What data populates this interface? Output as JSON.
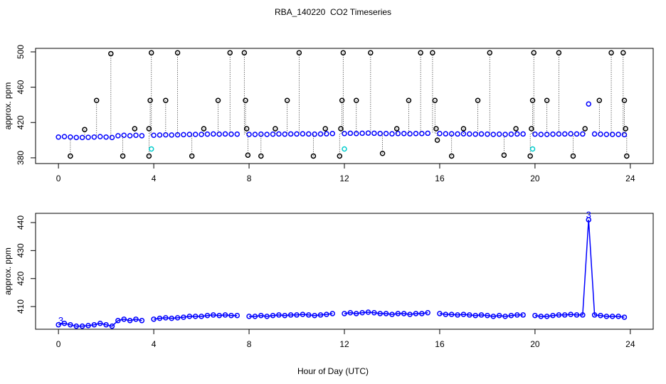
{
  "chart_data": [
    {
      "type": "scatter",
      "title": "RBA_140220  CO2 Timeseries",
      "ylabel": "approx. ppm",
      "xlim": [
        -0.96,
        24.96
      ],
      "xticks": [
        0,
        4,
        8,
        12,
        16,
        20,
        24
      ],
      "ylim": [
        373.5,
        504
      ],
      "yticks": [
        380,
        420,
        460,
        500
      ],
      "series": [
        {
          "color": "#0000ff",
          "x": [
            0,
            0.25,
            0.5,
            0.75,
            1,
            1.25,
            1.5,
            1.75,
            2,
            2.25,
            2.5,
            2.75,
            3,
            3.25,
            3.5,
            3.75,
            4,
            4.25,
            4.5,
            4.75,
            5,
            5.25,
            5.5,
            5.75,
            6,
            6.25,
            6.5,
            6.75,
            7,
            7.25,
            7.5,
            7.75,
            8,
            8.25,
            8.5,
            8.75,
            9,
            9.25,
            9.5,
            9.75,
            10,
            10.25,
            10.5,
            10.75,
            11,
            11.25,
            11.5,
            11.75,
            12,
            12.25,
            12.5,
            12.75,
            13,
            13.25,
            13.5,
            13.75,
            14,
            14.25,
            14.5,
            14.75,
            15,
            15.25,
            15.5,
            15.75,
            16,
            16.25,
            16.5,
            16.75,
            17,
            17.25,
            17.5,
            17.75,
            18,
            18.25,
            18.5,
            18.75,
            19,
            19.25,
            19.5,
            19.75,
            20,
            20.25,
            20.5,
            20.75,
            21,
            21.25,
            21.5,
            21.75,
            22,
            22.25,
            22.5,
            22.75,
            23,
            23.25,
            23.5,
            23.75
          ],
          "values": [
            403.5,
            404,
            403.5,
            403,
            403,
            403.2,
            403.5,
            404,
            403.5,
            403,
            405,
            405.5,
            405,
            405.5,
            405,
            null,
            405.5,
            405.8,
            406,
            405.8,
            406,
            406.2,
            406.5,
            406.5,
            406.5,
            406.8,
            407,
            406.8,
            407,
            406.8,
            406.8,
            null,
            406.5,
            406.5,
            406.8,
            406.5,
            406.8,
            407,
            406.8,
            407,
            407,
            407.2,
            407,
            406.8,
            407,
            407.2,
            407.5,
            null,
            407.5,
            407.8,
            407.5,
            407.8,
            408,
            407.8,
            407.5,
            407.5,
            407.2,
            407.5,
            407.5,
            407.2,
            407.5,
            407.5,
            407.8,
            null,
            407.5,
            407.2,
            407.2,
            407,
            407.2,
            407,
            406.8,
            407,
            406.8,
            406.5,
            406.8,
            406.5,
            406.8,
            407,
            407,
            null,
            406.8,
            406.5,
            406.5,
            406.8,
            407,
            407,
            407.2,
            407,
            407,
            441,
            407,
            406.8,
            406.5,
            406.5,
            406.5,
            406.2
          ]
        },
        {
          "color": "#000000",
          "stem": "dotted",
          "x": [
            0.5,
            1.1,
            1.6,
            2.2,
            2.7,
            3.2,
            3.8,
            3.8,
            3.85,
            3.9,
            4.5,
            5.0,
            5.6,
            6.1,
            6.7,
            7.2,
            7.8,
            7.85,
            7.9,
            7.95,
            8.5,
            9.1,
            9.6,
            10.1,
            10.7,
            11.2,
            11.8,
            11.85,
            11.9,
            11.95,
            12.5,
            13.1,
            13.6,
            14.2,
            14.7,
            15.2,
            15.7,
            15.8,
            15.85,
            15.9,
            16.5,
            17.0,
            17.6,
            18.1,
            18.7,
            19.2,
            19.8,
            19.85,
            19.9,
            19.95,
            20.5,
            21.0,
            21.6,
            22.1,
            22.7,
            23.2,
            23.7,
            23.75,
            23.8,
            23.85
          ],
          "values": [
            382,
            412,
            445,
            498,
            382,
            413,
            382,
            413,
            445,
            499,
            445,
            499,
            382,
            413,
            445,
            499,
            499,
            445,
            413,
            383,
            382,
            413,
            445,
            499,
            382,
            413,
            382,
            413,
            445,
            499,
            445,
            499,
            385,
            413,
            445,
            499,
            499,
            445,
            413,
            400,
            382,
            413,
            445,
            499,
            383,
            413,
            382,
            413,
            445,
            499,
            445,
            499,
            382,
            413,
            445,
            499,
            499,
            445,
            413,
            382
          ]
        },
        {
          "color": "#00cccc",
          "x": [
            3.9,
            12.0,
            19.9
          ],
          "values": [
            390,
            390,
            390
          ]
        }
      ]
    },
    {
      "type": "line",
      "ylabel": "approx. ppm",
      "xlabel": "Hour of Day (UTC)",
      "xlim": [
        -0.96,
        24.96
      ],
      "xticks": [
        0,
        4,
        8,
        12,
        16,
        20,
        24
      ],
      "ylim": [
        401.9,
        443.3
      ],
      "yticks": [
        410,
        420,
        430,
        440
      ],
      "series": [
        {
          "color": "#0000ff",
          "marker": "circle",
          "x": [
            0,
            0.25,
            0.5,
            0.75,
            1,
            1.25,
            1.5,
            1.75,
            2,
            2.25,
            2.5,
            2.75,
            3,
            3.25,
            3.5,
            3.75,
            4,
            4.25,
            4.5,
            4.75,
            5,
            5.25,
            5.5,
            5.75,
            6,
            6.25,
            6.5,
            6.75,
            7,
            7.25,
            7.5,
            7.75,
            8,
            8.25,
            8.5,
            8.75,
            9,
            9.25,
            9.5,
            9.75,
            10,
            10.25,
            10.5,
            10.75,
            11,
            11.25,
            11.5,
            11.75,
            12,
            12.25,
            12.5,
            12.75,
            13,
            13.25,
            13.5,
            13.75,
            14,
            14.25,
            14.5,
            14.75,
            15,
            15.25,
            15.5,
            15.75,
            16,
            16.25,
            16.5,
            16.75,
            17,
            17.25,
            17.5,
            17.75,
            18,
            18.25,
            18.5,
            18.75,
            19,
            19.25,
            19.5,
            19.75,
            20,
            20.25,
            20.5,
            20.75,
            21,
            21.25,
            21.5,
            21.75,
            22,
            22.25,
            22.5,
            22.75,
            23,
            23.25,
            23.5,
            23.75
          ],
          "values": [
            403.5,
            404,
            403.5,
            403,
            403,
            403.2,
            403.5,
            404,
            403.5,
            403,
            405,
            405.5,
            405,
            405.5,
            405,
            null,
            405.5,
            405.8,
            406,
            405.8,
            406,
            406.2,
            406.5,
            406.5,
            406.5,
            406.8,
            407,
            406.8,
            407,
            406.8,
            406.8,
            null,
            406.5,
            406.5,
            406.8,
            406.5,
            406.8,
            407,
            406.8,
            407,
            407,
            407.2,
            407,
            406.8,
            407,
            407.2,
            407.5,
            null,
            407.5,
            407.8,
            407.5,
            407.8,
            408,
            407.8,
            407.5,
            407.5,
            407.2,
            407.5,
            407.5,
            407.2,
            407.5,
            407.5,
            407.8,
            null,
            407.5,
            407.2,
            407.2,
            407,
            407.2,
            407,
            406.8,
            407,
            406.8,
            406.5,
            406.8,
            406.5,
            406.8,
            407,
            407,
            null,
            406.8,
            406.5,
            406.5,
            406.8,
            407,
            407,
            407.2,
            407,
            407,
            441,
            407,
            406.8,
            406.5,
            406.5,
            406.5,
            406.2
          ]
        }
      ],
      "annotations": [
        {
          "x": 0.1,
          "y": 403.3,
          "text": "3"
        },
        {
          "x": 22.25,
          "y": 441,
          "text": "3"
        }
      ]
    }
  ]
}
